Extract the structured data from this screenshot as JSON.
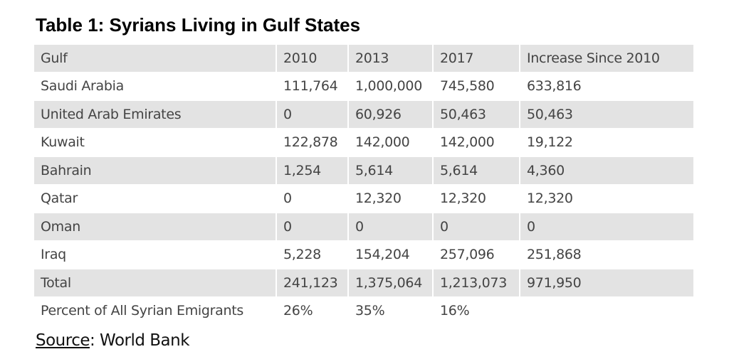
{
  "title": "Table 1: Syrians Living in Gulf States",
  "chart_data": {
    "type": "table",
    "columns": [
      "Gulf",
      "2010",
      "2013",
      "2017",
      "Increase Since 2010"
    ],
    "rows": [
      [
        "Saudi Arabia",
        "111,764",
        "1,000,000",
        "745,580",
        "633,816"
      ],
      [
        "United Arab Emirates",
        "0",
        "60,926",
        "50,463",
        "50,463"
      ],
      [
        "Kuwait",
        "122,878",
        "142,000",
        "142,000",
        "19,122"
      ],
      [
        "Bahrain",
        "1,254",
        "5,614",
        "5,614",
        "4,360"
      ],
      [
        "Qatar",
        "0",
        "12,320",
        "12,320",
        "12,320"
      ],
      [
        "Oman",
        "0",
        "0",
        "0",
        "0"
      ],
      [
        "Iraq",
        "5,228",
        "154,204",
        "257,096",
        "251,868"
      ],
      [
        "Total",
        "241,123",
        "1,375,064",
        "1,213,073",
        "971,950"
      ],
      [
        "Percent of All Syrian Emigrants",
        "26%",
        "35%",
        "16%",
        ""
      ]
    ]
  },
  "source": {
    "label": "Source",
    "text": ": World Bank"
  },
  "colors": {
    "shade": "#e3e3e3",
    "text": "#444444"
  }
}
